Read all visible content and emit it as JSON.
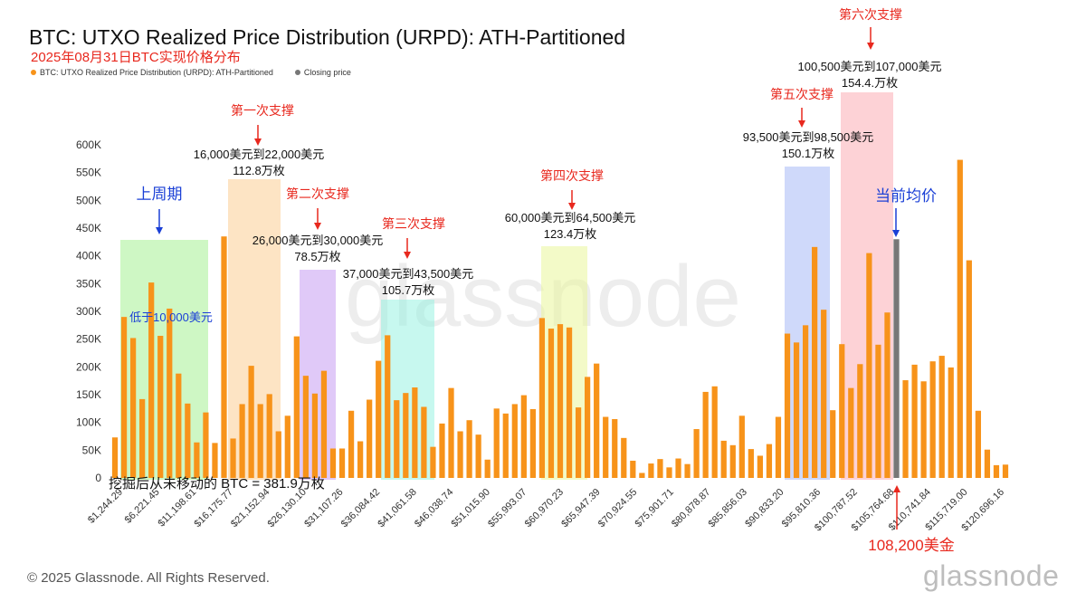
{
  "title": "BTC: UTXO Realized Price Distribution (URPD): ATH-Partitioned",
  "subtitle": "2025年08月31日BTC实现价格分布",
  "legend": [
    {
      "label": "BTC: UTXO Realized Price Distribution (URPD): ATH-Partitioned",
      "color": "#f7931a"
    },
    {
      "label": "Closing price",
      "color": "#777777"
    }
  ],
  "watermark": "glassnode",
  "copyright": "© 2025 Glassnode. All Rights Reserved.",
  "brand": "glassnode",
  "colors": {
    "bar": "#f7931a",
    "closing_bar": "#777777",
    "annotation_red": "#e8281e",
    "annotation_blue": "#1a3fd6"
  },
  "chart_data": {
    "type": "bar",
    "y_ticks": [
      "0",
      "50K",
      "100K",
      "150K",
      "200K",
      "250K",
      "300K",
      "350K",
      "400K",
      "450K",
      "500K",
      "550K",
      "600K"
    ],
    "ylim": [
      0,
      600000
    ],
    "x_tick_labels": [
      "$1,244.29",
      "$6,221.45",
      "$11,198.61",
      "$16,175.77",
      "$21,152.94",
      "$26,130.10",
      "$31,107.26",
      "$36,084.42",
      "$41,061.58",
      "$46,038.74",
      "$51,015.90",
      "$55,993.07",
      "$60,970.23",
      "$65,947.39",
      "$70,924.55",
      "$75,901.71",
      "$80,878.87",
      "$85,856.03",
      "$90,833.20",
      "$95,810.36",
      "$100,787.52",
      "$105,764.68",
      "$110,741.84",
      "$115,719.00",
      "$120,696.16"
    ],
    "values": [
      73000,
      290000,
      252000,
      142000,
      352000,
      256000,
      305000,
      188000,
      134000,
      64000,
      118000,
      63000,
      435000,
      71000,
      133000,
      202000,
      133000,
      151000,
      84000,
      112000,
      255000,
      184000,
      152000,
      193000,
      53000,
      53000,
      121000,
      66000,
      141000,
      211000,
      257000,
      140000,
      153000,
      163000,
      128000,
      56000,
      98000,
      162000,
      84000,
      104000,
      78000,
      33000,
      125000,
      116000,
      133000,
      149000,
      124000,
      288000,
      269000,
      277000,
      271000,
      127000,
      182000,
      206000,
      110000,
      106000,
      72000,
      31000,
      9000,
      26000,
      34000,
      19000,
      35000,
      25000,
      88000,
      155000,
      165000,
      67000,
      59000,
      112000,
      52000,
      40000,
      61000,
      110000,
      260000,
      244000,
      275000,
      416000,
      303000,
      122000,
      241000,
      162000,
      205000,
      405000,
      240000,
      298000,
      430000,
      176000,
      204000,
      174000,
      210000,
      220000,
      199000,
      573000,
      392000,
      121000,
      51000,
      23000,
      24000
    ],
    "closing_index": 86,
    "annotations": {
      "label_prev_cycle": "上周期",
      "label_below_10k": "低于10,000美元",
      "label_s1": "第一次支撑",
      "label_s1_range": "16,000美元到22,000美元",
      "label_s1_amt": "112.8万枚",
      "label_s2": "第二次支撑",
      "label_s2_range": "26,000美元到30,000美元",
      "label_s2_amt": "78.5万枚",
      "label_s3": "第三次支撑",
      "label_s3_range": "37,000美元到43,500美元",
      "label_s3_amt": "105.7万枚",
      "label_s4": "第四次支撑",
      "label_s4_range": "60,000美元到64,500美元",
      "label_s4_amt": "123.4万枚",
      "label_s5": "第五次支撑",
      "label_s5_range": "93,500美元到98,500美元",
      "label_s5_amt": "150.1万枚",
      "label_s6": "第六次支撑",
      "label_s6_range": "100,500美元到107,000美元",
      "label_s6_amt": "154.4.万枚",
      "label_current": "当前均价",
      "label_price": "108,200美金",
      "label_unmoved": "挖掘后从未移动的 BTC = 381.9万枚"
    }
  }
}
